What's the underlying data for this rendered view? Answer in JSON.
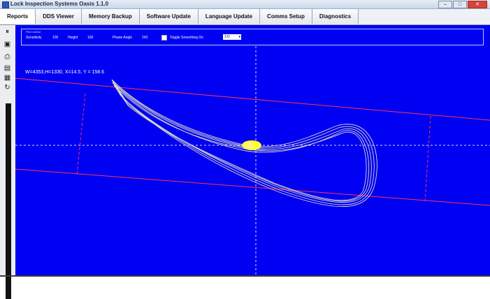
{
  "window": {
    "title": "Lock Inspection Systems Oasis 1.1.0",
    "min_label": "–",
    "max_label": "□",
    "close_label": "✕"
  },
  "tabs": [
    {
      "label": "Reports"
    },
    {
      "label": "DDS Viewer"
    },
    {
      "label": "Memory Backup"
    },
    {
      "label": "Software Update"
    },
    {
      "label": "Language Update"
    },
    {
      "label": "Comms Setup"
    },
    {
      "label": "Diagnostics"
    }
  ],
  "controls": {
    "group_label": "Plot Control",
    "sensitivity_label": "Sensitivity",
    "sensitivity_value": "100",
    "height_label": "Height",
    "height_value": "100",
    "phase_label": "Phase Angle",
    "phase_value": "243",
    "toggle_label": "Toggle Smoothing On",
    "combo_value": "3 D"
  },
  "readout": {
    "text": "W=4353,H=1330, X=14.5, Y = 158.6"
  },
  "left_tools": [
    {
      "icon": "pause-icon"
    },
    {
      "icon": "save-icon"
    },
    {
      "icon": "print-icon"
    },
    {
      "icon": "save-report-icon"
    },
    {
      "icon": "settings-icon"
    },
    {
      "icon": "refresh-icon"
    }
  ],
  "colors": {
    "canvas": "#0000f2",
    "trace": "#e8e8c8",
    "blob": "#ffff33",
    "guide": "#ff3355",
    "crosshair": "#ffffff"
  }
}
